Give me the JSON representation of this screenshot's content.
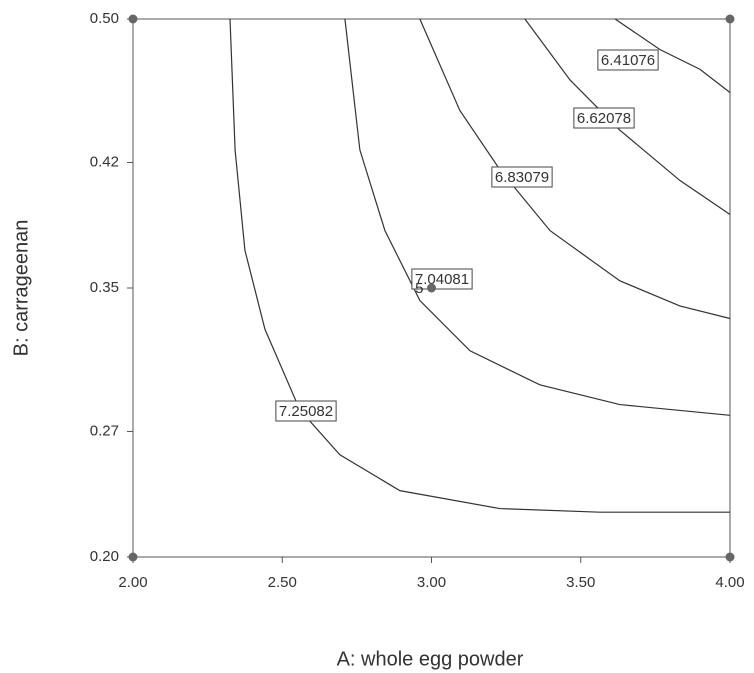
{
  "chart_data": {
    "type": "contour",
    "x_label": "A: whole egg powder",
    "y_label": "B: carrageenan",
    "xlim": [
      2,
      4
    ],
    "ylim": [
      0.2,
      0.5
    ],
    "xticks": [
      {
        "value": 2,
        "label": "2.00"
      },
      {
        "value": 2.5,
        "label": "2.50"
      },
      {
        "value": 3,
        "label": "3.00"
      },
      {
        "value": 3.5,
        "label": "3.50"
      },
      {
        "value": 4,
        "label": "4.00"
      }
    ],
    "yticks": [
      {
        "value": 0.2,
        "label": "0.20"
      },
      0.27,
      0.35,
      0.42,
      {
        "value": 0.5,
        "label": "0.50"
      }
    ],
    "series": [
      {
        "name": "6.41076",
        "color": "#333333",
        "x": [
          3.615,
          3.765,
          3.899,
          4.0
        ],
        "values": [
          0.5,
          0.483,
          0.472,
          0.459
        ]
      },
      {
        "name": "6.62078",
        "color": "#333333",
        "x": [
          3.313,
          3.464,
          3.631,
          3.832,
          4.0
        ],
        "values": [
          0.5,
          0.466,
          0.438,
          0.41,
          0.391
        ]
      },
      {
        "name": "6.83079",
        "color": "#333333",
        "x": [
          2.961,
          3.095,
          3.229,
          3.397,
          3.631,
          3.832,
          4.0
        ],
        "values": [
          0.5,
          0.449,
          0.416,
          0.382,
          0.354,
          0.34,
          0.333
        ]
      },
      {
        "name": "7.04081",
        "color": "#333333",
        "x": [
          2.71,
          2.76,
          2.844,
          2.961,
          3.129,
          3.363,
          3.631,
          4.0
        ],
        "values": [
          0.5,
          0.427,
          0.382,
          0.343,
          0.315,
          0.296,
          0.285,
          0.279
        ]
      },
      {
        "name": "7.25082",
        "color": "#333333",
        "x": [
          2.325,
          2.342,
          2.375,
          2.442,
          2.559,
          2.693,
          2.894,
          3.229,
          3.564,
          4.0
        ],
        "values": [
          0.5,
          0.427,
          0.371,
          0.327,
          0.282,
          0.257,
          0.237,
          0.227,
          0.225,
          0.225
        ]
      }
    ],
    "points": {
      "x": [
        2,
        4,
        2,
        4,
        3
      ],
      "y": [
        0.5,
        0.5,
        0.2,
        0.2,
        0.35
      ],
      "labels": [
        null,
        null,
        null,
        null,
        "5"
      ]
    }
  }
}
